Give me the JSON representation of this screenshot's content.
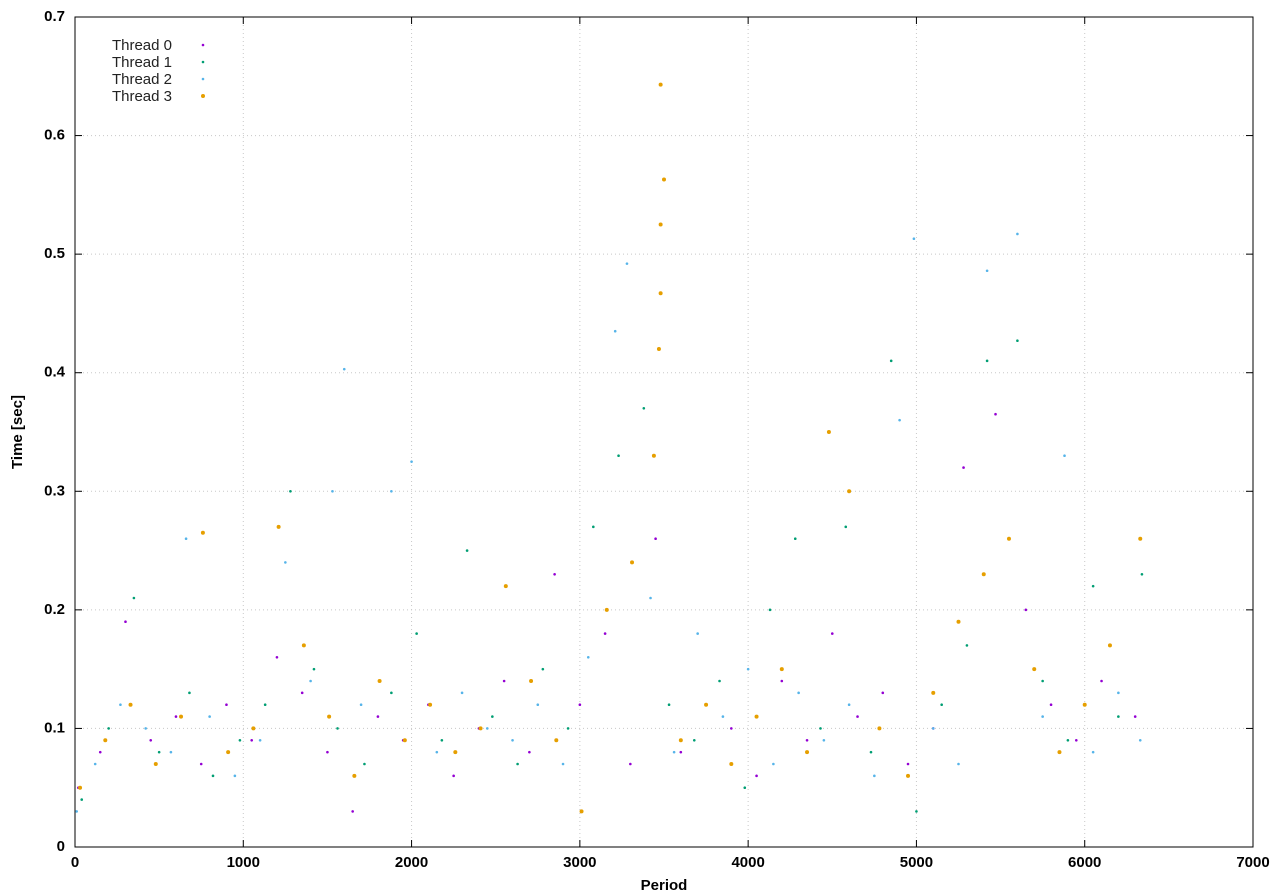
{
  "chart_data": {
    "type": "scatter",
    "x_label": "Period",
    "y_label": "Time [sec]",
    "xlim": [
      0,
      7000
    ],
    "xticks": [
      0,
      1000,
      2000,
      3000,
      4000,
      5000,
      6000,
      7000
    ],
    "ylim": [
      0,
      0.7
    ],
    "yticks": [
      0,
      0.1,
      0.2,
      0.3,
      0.4,
      0.5,
      0.6,
      0.7
    ],
    "grid": true,
    "legend": "top-left",
    "series": [
      {
        "name": "Thread 0",
        "color": "#9400d3",
        "x": [
          20,
          150,
          300,
          450,
          600,
          750,
          900,
          1050,
          1200,
          1350,
          1500,
          1650,
          1800,
          1950,
          2100,
          2250,
          2400,
          2550,
          2700,
          2850,
          3000,
          3150,
          3300,
          3450,
          3600,
          3750,
          3900,
          4050,
          4200,
          4350,
          4500,
          4650,
          4800,
          4950,
          5100,
          5280,
          5470,
          5650,
          5800,
          5950,
          6100,
          6300
        ],
        "values": [
          0.05,
          0.08,
          0.19,
          0.09,
          0.11,
          0.07,
          0.12,
          0.09,
          0.16,
          0.13,
          0.08,
          0.03,
          0.11,
          0.09,
          0.12,
          0.06,
          0.1,
          0.14,
          0.08,
          0.23,
          0.12,
          0.18,
          0.07,
          0.26,
          0.08,
          0.12,
          0.1,
          0.06,
          0.14,
          0.09,
          0.18,
          0.11,
          0.13,
          0.07,
          0.1,
          0.32,
          0.365,
          0.2,
          0.12,
          0.09,
          0.14,
          0.11
        ]
      },
      {
        "name": "Thread 1",
        "color": "#009e73",
        "x": [
          40,
          200,
          350,
          500,
          680,
          820,
          980,
          1130,
          1280,
          1420,
          1560,
          1720,
          1880,
          2030,
          2180,
          2330,
          2480,
          2630,
          2780,
          2930,
          3080,
          3230,
          3380,
          3530,
          3680,
          3830,
          3980,
          4130,
          4280,
          4430,
          4580,
          4730,
          4850,
          5000,
          5150,
          5300,
          5420,
          5600,
          5750,
          5900,
          6050,
          6200,
          6340
        ],
        "values": [
          0.04,
          0.1,
          0.21,
          0.08,
          0.13,
          0.06,
          0.09,
          0.12,
          0.3,
          0.15,
          0.1,
          0.07,
          0.13,
          0.18,
          0.09,
          0.25,
          0.11,
          0.07,
          0.15,
          0.1,
          0.27,
          0.33,
          0.37,
          0.12,
          0.09,
          0.14,
          0.05,
          0.2,
          0.26,
          0.1,
          0.27,
          0.08,
          0.41,
          0.03,
          0.12,
          0.17,
          0.41,
          0.427,
          0.14,
          0.09,
          0.22,
          0.11,
          0.23
        ]
      },
      {
        "name": "Thread 2",
        "color": "#56b4e9",
        "x": [
          10,
          120,
          270,
          420,
          570,
          660,
          800,
          950,
          1100,
          1250,
          1400,
          1530,
          1600,
          1700,
          1880,
          2000,
          2150,
          2300,
          2450,
          2600,
          2750,
          2900,
          3050,
          3210,
          3280,
          3420,
          3560,
          3700,
          3850,
          4000,
          4150,
          4300,
          4450,
          4600,
          4750,
          4900,
          4985,
          5100,
          5250,
          5420,
          5600,
          5750,
          5880,
          6050,
          6200,
          6330
        ],
        "values": [
          0.03,
          0.07,
          0.12,
          0.1,
          0.08,
          0.26,
          0.11,
          0.06,
          0.09,
          0.24,
          0.14,
          0.3,
          0.403,
          0.12,
          0.3,
          0.325,
          0.08,
          0.13,
          0.1,
          0.09,
          0.12,
          0.07,
          0.16,
          0.435,
          0.492,
          0.21,
          0.08,
          0.18,
          0.11,
          0.15,
          0.07,
          0.13,
          0.09,
          0.12,
          0.06,
          0.36,
          0.513,
          0.1,
          0.07,
          0.486,
          0.517,
          0.11,
          0.33,
          0.08,
          0.13,
          0.09
        ]
      },
      {
        "name": "Thread 3",
        "color": "#e69f00",
        "x": [
          30,
          180,
          330,
          480,
          630,
          760,
          910,
          1060,
          1210,
          1360,
          1510,
          1660,
          1810,
          1960,
          2110,
          2260,
          2410,
          2560,
          2710,
          2860,
          3010,
          3160,
          3310,
          3440,
          3470,
          3480,
          3480,
          3500,
          3480,
          3600,
          3750,
          3900,
          4050,
          4200,
          4350,
          4480,
          4600,
          4780,
          4950,
          5100,
          5250,
          5400,
          5550,
          5700,
          5850,
          6000,
          6150,
          6330
        ],
        "values": [
          0.05,
          0.09,
          0.12,
          0.07,
          0.11,
          0.265,
          0.08,
          0.1,
          0.27,
          0.17,
          0.11,
          0.06,
          0.14,
          0.09,
          0.12,
          0.08,
          0.1,
          0.22,
          0.14,
          0.09,
          0.03,
          0.2,
          0.24,
          0.33,
          0.42,
          0.467,
          0.643,
          0.563,
          0.525,
          0.09,
          0.12,
          0.07,
          0.11,
          0.15,
          0.08,
          0.35,
          0.3,
          0.1,
          0.06,
          0.13,
          0.19,
          0.23,
          0.26,
          0.15,
          0.08,
          0.12,
          0.17,
          0.26
        ]
      }
    ]
  }
}
